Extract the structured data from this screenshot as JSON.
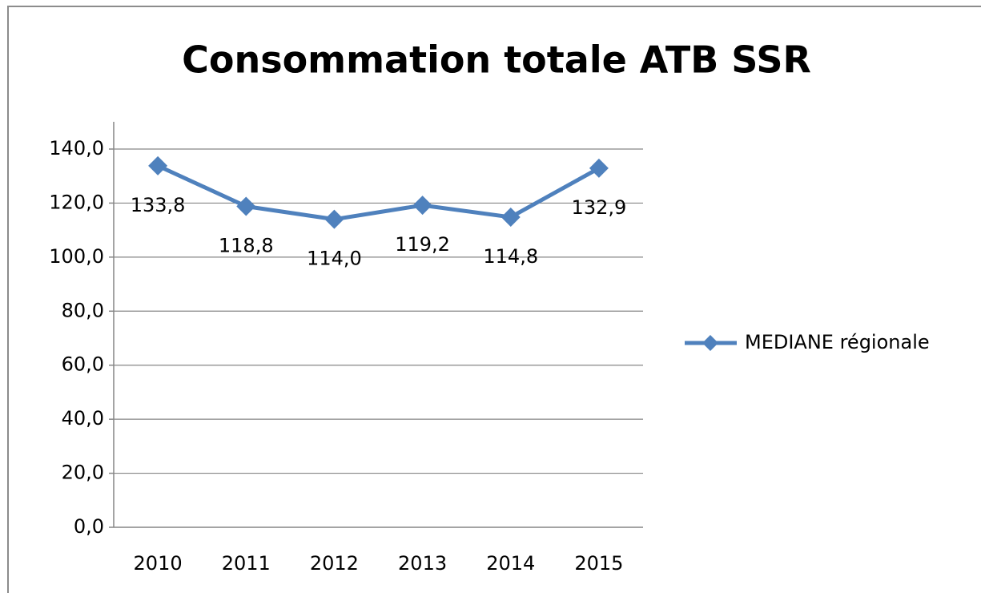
{
  "chart_data": {
    "type": "line",
    "title": "Consommation totale ATB SSR",
    "categories": [
      "2010",
      "2011",
      "2012",
      "2013",
      "2014",
      "2015"
    ],
    "series": [
      {
        "name": "MEDIANE régionale",
        "color": "#4f81bd",
        "values": [
          133.8,
          118.8,
          114.0,
          119.2,
          114.8,
          132.9
        ],
        "value_labels": [
          "133,8",
          "118,8",
          "114,0",
          "119,2",
          "114,8",
          "132,9"
        ]
      }
    ],
    "ylim": [
      0,
      140
    ],
    "yticks": [
      {
        "value": 0,
        "label": "0,0"
      },
      {
        "value": 20,
        "label": "20,0"
      },
      {
        "value": 40,
        "label": "40,0"
      },
      {
        "value": 60,
        "label": "60,0"
      },
      {
        "value": 80,
        "label": "80,0"
      },
      {
        "value": 100,
        "label": "100,0"
      },
      {
        "value": 120,
        "label": "120,0"
      },
      {
        "value": 140,
        "label": "140,0"
      }
    ],
    "grid": true,
    "legend": "right"
  }
}
